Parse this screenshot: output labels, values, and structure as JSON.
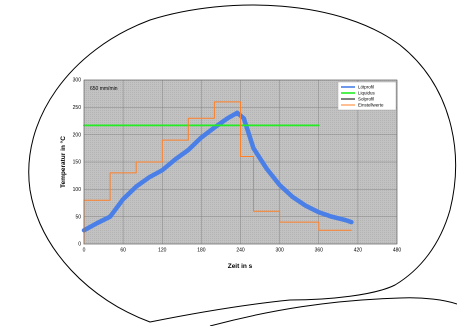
{
  "chart_data": {
    "type": "line",
    "annotation": "650 mm/min",
    "xlabel": "Zeit in s",
    "ylabel": "Temperatur in °C",
    "xlim": [
      0,
      480
    ],
    "ylim": [
      0,
      300
    ],
    "xticks": [
      0,
      60,
      120,
      180,
      240,
      300,
      360,
      420,
      480
    ],
    "yticks": [
      0,
      50,
      100,
      150,
      200,
      250,
      300
    ],
    "grid": true,
    "legend_position": "top-right",
    "legend": [
      "Lötprofil",
      "Liquidus",
      "Solprofil",
      "Einstellwerte"
    ],
    "series": [
      {
        "name": "Lötprofil",
        "color": "#4a7fe8",
        "x": [
          0,
          20,
          40,
          60,
          80,
          100,
          120,
          140,
          160,
          180,
          200,
          220,
          235,
          245,
          260,
          280,
          300,
          320,
          340,
          360,
          380,
          400,
          410
        ],
        "y": [
          25,
          38,
          50,
          82,
          105,
          122,
          135,
          155,
          172,
          195,
          213,
          230,
          240,
          230,
          175,
          138,
          108,
          86,
          70,
          58,
          50,
          44,
          40
        ]
      },
      {
        "name": "Liquidus",
        "color": "#22ee22",
        "x": [
          0,
          360
        ],
        "y": [
          217,
          217
        ]
      },
      {
        "name": "Solprofil",
        "color": "#000000",
        "x": [],
        "y": []
      },
      {
        "name": "Einstellwerte",
        "color": "#ff7f27",
        "x": [
          0,
          0,
          40,
          40,
          80,
          80,
          120,
          120,
          160,
          160,
          200,
          200,
          240,
          240,
          260,
          260,
          300,
          300,
          360,
          360,
          410
        ],
        "y": [
          0,
          80,
          80,
          130,
          130,
          150,
          150,
          190,
          190,
          230,
          230,
          260,
          260,
          160,
          160,
          60,
          60,
          40,
          40,
          25,
          25
        ]
      }
    ]
  }
}
